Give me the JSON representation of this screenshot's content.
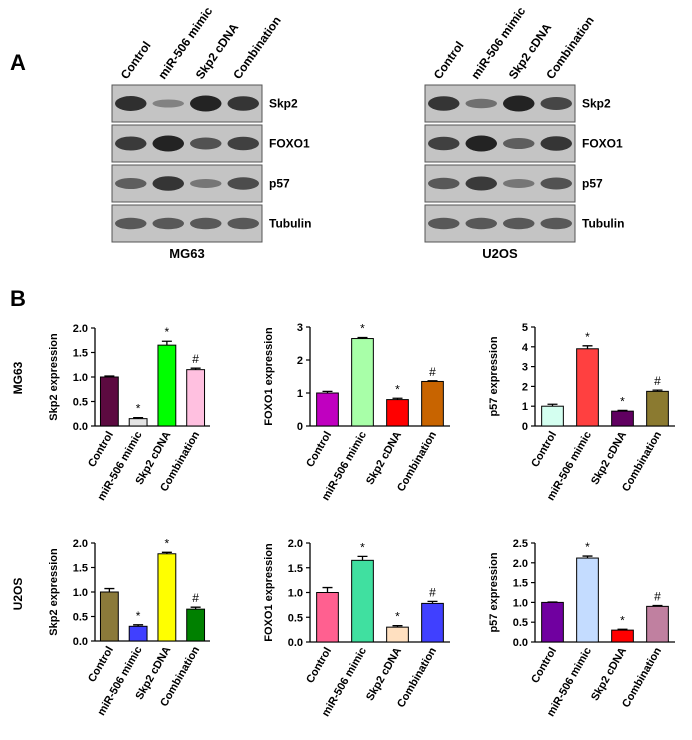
{
  "panel_a": {
    "label": "A",
    "blots": [
      {
        "cell_line": "MG63",
        "lanes": [
          "Control",
          "miR-506 mimic",
          "Skp2 cDNA",
          "Combination"
        ],
        "proteins": [
          "Skp2",
          "FOXO1",
          "p57",
          "Tubulin"
        ]
      },
      {
        "cell_line": "U2OS",
        "lanes": [
          "Control",
          "miR-506 mimic",
          "Skp2 cDNA",
          "Combination"
        ],
        "proteins": [
          "Skp2",
          "FOXO1",
          "p57",
          "Tubulin"
        ]
      }
    ]
  },
  "panel_b": {
    "label": "B",
    "rows": [
      "MG63",
      "U2OS"
    ]
  },
  "chart_data": [
    {
      "type": "bar",
      "ylabel": "Skp2  expression",
      "categories": [
        "Control",
        "miR-506 mimic",
        "Skp2 cDNA",
        "Combination"
      ],
      "values": [
        1.0,
        0.15,
        1.65,
        1.15
      ],
      "errors": [
        0.02,
        0.02,
        0.08,
        0.03
      ],
      "annotations": [
        null,
        "*",
        "*",
        "#"
      ],
      "colors": [
        "#5c0a40",
        "#e4e4e4",
        "#00ff00",
        "#ffc0e0"
      ],
      "ylim": [
        0,
        2
      ],
      "yticks": [
        {
          "value": 0,
          "label": "0.0"
        },
        {
          "value": 0.5,
          "label": "0.5"
        },
        {
          "value": 1,
          "label": "1.0"
        },
        {
          "value": 1.5,
          "label": "1.5"
        },
        {
          "value": 2,
          "label": "2.0"
        }
      ]
    },
    {
      "type": "bar",
      "ylabel": "FOXO1  expression",
      "categories": [
        "Control",
        "miR-506 mimic",
        "Skp2 cDNA",
        "Combination"
      ],
      "values": [
        1.0,
        2.65,
        0.8,
        1.35
      ],
      "errors": [
        0.05,
        0.03,
        0.04,
        0.02
      ],
      "annotations": [
        null,
        "*",
        "*",
        "#"
      ],
      "colors": [
        "#c000c0",
        "#a8ffa8",
        "#ff0000",
        "#c86400"
      ],
      "ylim": [
        0,
        3
      ],
      "yticks": [
        0,
        1,
        2,
        3
      ]
    },
    {
      "type": "bar",
      "ylabel": "p57  expression",
      "categories": [
        "Control",
        "miR-506 mimic",
        "Skp2 cDNA",
        "Combination"
      ],
      "values": [
        1.0,
        3.9,
        0.75,
        1.75
      ],
      "errors": [
        0.1,
        0.15,
        0.04,
        0.06
      ],
      "annotations": [
        null,
        "*",
        "*",
        "#"
      ],
      "colors": [
        "#d4fff0",
        "#ff4040",
        "#600060",
        "#8b7a30"
      ],
      "ylim": [
        0,
        5
      ],
      "yticks": [
        0,
        1,
        2,
        3,
        4,
        5
      ]
    },
    {
      "type": "bar",
      "ylabel": "Skp2  expression",
      "categories": [
        "Control",
        "miR-506 mimic",
        "Skp2 cDNA",
        "Combination"
      ],
      "values": [
        1.0,
        0.3,
        1.78,
        0.65
      ],
      "errors": [
        0.07,
        0.03,
        0.03,
        0.04
      ],
      "annotations": [
        null,
        "*",
        "*",
        "#"
      ],
      "colors": [
        "#8b7a3a",
        "#4040ff",
        "#ffff00",
        "#008000"
      ],
      "ylim": [
        0,
        2
      ],
      "yticks": [
        {
          "value": 0,
          "label": "0.0"
        },
        {
          "value": 0.5,
          "label": "0.5"
        },
        {
          "value": 1,
          "label": "1.0"
        },
        {
          "value": 1.5,
          "label": "1.5"
        },
        {
          "value": 2,
          "label": "2.0"
        }
      ]
    },
    {
      "type": "bar",
      "ylabel": "FOXO1  expression",
      "categories": [
        "Control",
        "miR-506 mimic",
        "Skp2 cDNA",
        "Combination"
      ],
      "values": [
        1.0,
        1.65,
        0.3,
        0.78
      ],
      "errors": [
        0.1,
        0.08,
        0.03,
        0.04
      ],
      "annotations": [
        null,
        "*",
        "*",
        "#"
      ],
      "colors": [
        "#ff6090",
        "#40e0a0",
        "#ffe0c0",
        "#4040ff"
      ],
      "ylim": [
        0,
        2
      ],
      "yticks": [
        {
          "value": 0,
          "label": "0.0"
        },
        {
          "value": 0.5,
          "label": "0.5"
        },
        {
          "value": 1,
          "label": "1.0"
        },
        {
          "value": 1.5,
          "label": "1.5"
        },
        {
          "value": 2,
          "label": "2.0"
        }
      ]
    },
    {
      "type": "bar",
      "ylabel": "p57  expression",
      "categories": [
        "Control",
        "miR-506 mimic",
        "Skp2 cDNA",
        "Combination"
      ],
      "values": [
        1.0,
        2.12,
        0.3,
        0.9
      ],
      "errors": [
        0.01,
        0.05,
        0.02,
        0.02
      ],
      "annotations": [
        null,
        "*",
        "*",
        "#"
      ],
      "colors": [
        "#7000a0",
        "#c4dcff",
        "#ff0000",
        "#c080a0"
      ],
      "ylim": [
        0,
        2.5
      ],
      "yticks": [
        {
          "value": 0,
          "label": "0.0"
        },
        {
          "value": 0.5,
          "label": "0.5"
        },
        {
          "value": 1,
          "label": "1.0"
        },
        {
          "value": 1.5,
          "label": "1.5"
        },
        {
          "value": 2,
          "label": "2.0"
        },
        {
          "value": 2.5,
          "label": "2.5"
        }
      ]
    }
  ]
}
